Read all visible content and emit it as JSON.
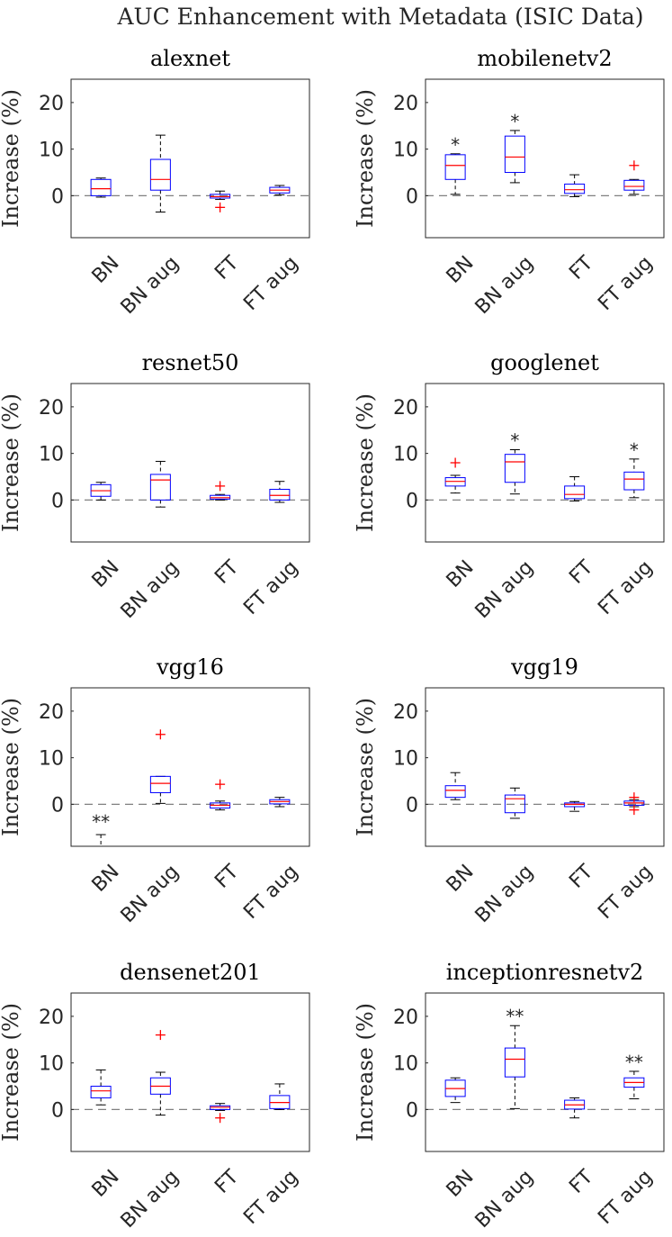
{
  "figure_title": "AUC Enhancement with Metadata (ISIC Data)",
  "chart_data": {
    "type": "boxplot",
    "title": "AUC Enhancement with Metadata (ISIC Data)",
    "ylabel": "Increase (%)",
    "ylim": [
      -9,
      25
    ],
    "yticks": [
      0,
      10,
      20
    ],
    "categories": [
      "BN",
      "BN aug",
      "FT",
      "FT aug"
    ],
    "colors": {
      "box": "#0000ff",
      "median": "#ff0000",
      "whisker": "#000000",
      "outlier": "#ff0000",
      "zero_line": "#808080"
    },
    "panels": [
      {
        "name": "alexnet",
        "boxes": [
          {
            "q1": 0,
            "median": 1.5,
            "q3": 3.5,
            "whislo": -0.3,
            "whishi": 3.8,
            "outliers": [],
            "sig": ""
          },
          {
            "q1": 1.2,
            "median": 3.5,
            "q3": 7.8,
            "whislo": -3.5,
            "whishi": 13,
            "outliers": [],
            "sig": ""
          },
          {
            "q1": -0.5,
            "median": -0.2,
            "q3": 0.3,
            "whislo": -0.8,
            "whishi": 1,
            "outliers": [
              -2.5
            ],
            "sig": ""
          },
          {
            "q1": 0.6,
            "median": 1.2,
            "q3": 1.8,
            "whislo": 0.2,
            "whishi": 2.2,
            "outliers": [],
            "sig": ""
          }
        ]
      },
      {
        "name": "mobilenetv2",
        "boxes": [
          {
            "q1": 3.5,
            "median": 6.5,
            "q3": 8.8,
            "whislo": 0.3,
            "whishi": 9,
            "outliers": [],
            "sig": "*"
          },
          {
            "q1": 5,
            "median": 8.3,
            "q3": 12.8,
            "whislo": 2.8,
            "whishi": 14,
            "outliers": [],
            "sig": "*"
          },
          {
            "q1": 0.5,
            "median": 1.3,
            "q3": 2.5,
            "whislo": -0.2,
            "whishi": 4.5,
            "outliers": [],
            "sig": ""
          },
          {
            "q1": 1.2,
            "median": 2,
            "q3": 3.3,
            "whislo": 0.3,
            "whishi": 3.5,
            "outliers": [
              6.5
            ],
            "sig": ""
          }
        ]
      },
      {
        "name": "resnet50",
        "boxes": [
          {
            "q1": 0.8,
            "median": 2,
            "q3": 3.3,
            "whislo": 0,
            "whishi": 3.8,
            "outliers": [],
            "sig": ""
          },
          {
            "q1": 0,
            "median": 4.3,
            "q3": 5.5,
            "whislo": -1.5,
            "whishi": 8.3,
            "outliers": [],
            "sig": ""
          },
          {
            "q1": 0.2,
            "median": 0.5,
            "q3": 1,
            "whislo": 0,
            "whishi": 1.2,
            "outliers": [
              3
            ],
            "sig": ""
          },
          {
            "q1": 0,
            "median": 1,
            "q3": 2.3,
            "whislo": -0.5,
            "whishi": 4,
            "outliers": [],
            "sig": ""
          }
        ]
      },
      {
        "name": "googlenet",
        "boxes": [
          {
            "q1": 3,
            "median": 4,
            "q3": 4.8,
            "whislo": 1.5,
            "whishi": 5.3,
            "outliers": [
              8
            ],
            "sig": ""
          },
          {
            "q1": 3.8,
            "median": 8.2,
            "q3": 9.8,
            "whislo": 1.3,
            "whishi": 10.8,
            "outliers": [],
            "sig": "*"
          },
          {
            "q1": 0.3,
            "median": 1.2,
            "q3": 3,
            "whislo": -0.2,
            "whishi": 5,
            "outliers": [],
            "sig": ""
          },
          {
            "q1": 2.2,
            "median": 4.5,
            "q3": 6,
            "whislo": 0.5,
            "whishi": 8.8,
            "outliers": [],
            "sig": "*"
          }
        ]
      },
      {
        "name": "vgg16",
        "boxes": [
          {
            "q1": null,
            "median": null,
            "q3": null,
            "whislo": -9,
            "whishi": -6.5,
            "outliers": [],
            "sig": "**"
          },
          {
            "q1": 2.5,
            "median": 4.5,
            "q3": 6,
            "whislo": 0.2,
            "whishi": 6,
            "outliers": [
              15
            ],
            "sig": ""
          },
          {
            "q1": -0.8,
            "median": -0.2,
            "q3": 0.3,
            "whislo": -1.2,
            "whishi": 0.7,
            "outliers": [
              4.3
            ],
            "sig": ""
          },
          {
            "q1": 0.1,
            "median": 0.6,
            "q3": 1,
            "whislo": -0.5,
            "whishi": 1.5,
            "outliers": [],
            "sig": ""
          }
        ]
      },
      {
        "name": "vgg19",
        "boxes": [
          {
            "q1": 1.5,
            "median": 3,
            "q3": 4,
            "whislo": 1,
            "whishi": 6.8,
            "outliers": [],
            "sig": ""
          },
          {
            "q1": -1.8,
            "median": 1.2,
            "q3": 2,
            "whislo": -3,
            "whishi": 3.5,
            "outliers": [],
            "sig": ""
          },
          {
            "q1": -0.5,
            "median": 0,
            "q3": 0.3,
            "whislo": -1.5,
            "whishi": 0.6,
            "outliers": [],
            "sig": ""
          },
          {
            "q1": -0.2,
            "median": 0.3,
            "q3": 0.7,
            "whislo": -0.5,
            "whishi": 1,
            "outliers": [
              1.5,
              -1.2
            ],
            "sig": ""
          }
        ]
      },
      {
        "name": "densenet201",
        "boxes": [
          {
            "q1": 2.5,
            "median": 4,
            "q3": 5,
            "whislo": 1,
            "whishi": 8.5,
            "outliers": [],
            "sig": ""
          },
          {
            "q1": 3.3,
            "median": 5,
            "q3": 6.8,
            "whislo": -1.2,
            "whishi": 8,
            "outliers": [
              16
            ],
            "sig": ""
          },
          {
            "q1": 0,
            "median": 0.5,
            "q3": 0.8,
            "whislo": -0.2,
            "whishi": 1.3,
            "outliers": [
              -1.8
            ],
            "sig": ""
          },
          {
            "q1": 0.2,
            "median": 1.5,
            "q3": 3,
            "whislo": 0,
            "whishi": 5.5,
            "outliers": [],
            "sig": ""
          }
        ]
      },
      {
        "name": "inceptionresnetv2",
        "boxes": [
          {
            "q1": 2.8,
            "median": 4.5,
            "q3": 6.3,
            "whislo": 1.5,
            "whishi": 6.8,
            "outliers": [],
            "sig": ""
          },
          {
            "q1": 7,
            "median": 10.8,
            "q3": 13.2,
            "whislo": 0.2,
            "whishi": 18,
            "outliers": [],
            "sig": "**"
          },
          {
            "q1": 0.1,
            "median": 1,
            "q3": 2,
            "whislo": -1.8,
            "whishi": 2.5,
            "outliers": [],
            "sig": ""
          },
          {
            "q1": 4.8,
            "median": 5.8,
            "q3": 6.8,
            "whislo": 2.3,
            "whishi": 8.2,
            "outliers": [],
            "sig": "**"
          }
        ]
      }
    ]
  }
}
